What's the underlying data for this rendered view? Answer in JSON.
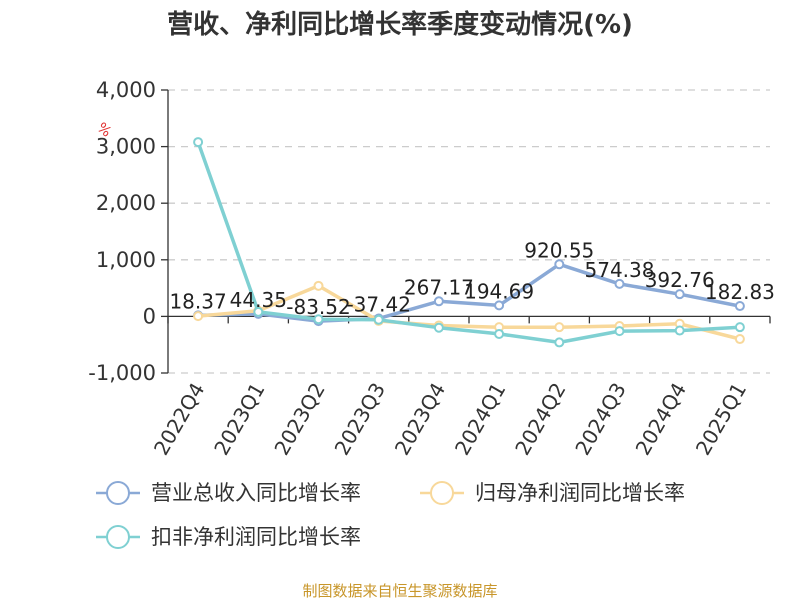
{
  "chart_data": {
    "type": "line",
    "title": "营收、净利同比增长率季度变动情况(%)",
    "unit": "%",
    "categories": [
      "2022Q4",
      "2023Q1",
      "2023Q2",
      "2023Q3",
      "2023Q4",
      "2024Q1",
      "2024Q2",
      "2024Q3",
      "2024Q4",
      "2025Q1"
    ],
    "ylim": [
      -1000,
      4000
    ],
    "yticks": [
      4000,
      3000,
      2000,
      1000,
      0,
      -1000
    ],
    "ytick_labels": [
      "4,000",
      "3,000",
      "2,000",
      "1,000",
      "0",
      "-1,000"
    ],
    "grid": true,
    "legend_position": "bottom",
    "series": [
      {
        "name": "营业总收入同比增长率",
        "color": "#8aa9d6",
        "values": [
          18.37,
          44.35,
          -83.52,
          -37.42,
          267.17,
          194.69,
          920.55,
          574.38,
          392.76,
          182.83
        ],
        "labels": [
          "18.37",
          "44.35",
          "-83.52",
          "-37.42",
          "267.17",
          "194.69",
          "920.55",
          "574.38",
          "392.76",
          "182.83"
        ]
      },
      {
        "name": "归母净利润同比增长率",
        "color": "#f8d89a",
        "values": [
          5,
          100,
          540,
          -80,
          -160,
          -190,
          -190,
          -170,
          -130,
          -400
        ]
      },
      {
        "name": "扣非净利润同比增长率",
        "color": "#7fd0d2",
        "values": [
          3080,
          80,
          -50,
          -60,
          -200,
          -310,
          -460,
          -260,
          -250,
          -190
        ]
      }
    ]
  },
  "source": "制图数据来自恒生聚源数据库"
}
